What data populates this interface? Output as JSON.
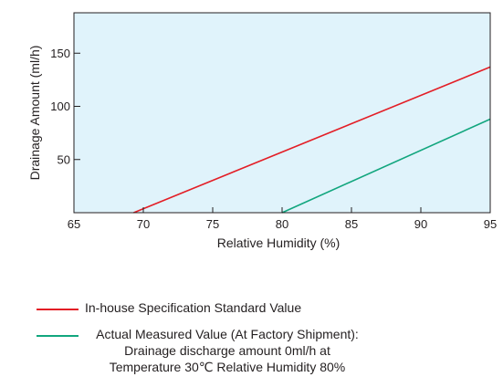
{
  "chart_data": {
    "type": "line",
    "title": "",
    "xlabel": "Relative Humidity (%)",
    "ylabel": "Drainage Amount (ml/h)",
    "xlim": [
      65,
      95
    ],
    "ylim": [
      0,
      188
    ],
    "xticks": [
      65,
      70,
      75,
      80,
      85,
      90,
      95
    ],
    "yticks": [
      50,
      100,
      150
    ],
    "grid": false,
    "background_color": "#e0f3fb",
    "series": [
      {
        "name": "In-house Specification Standard Value",
        "color": "#e31e26",
        "x": [
          69.3,
          95
        ],
        "y": [
          0,
          137
        ]
      },
      {
        "name": "Actual Measured Value (At Factory Shipment):",
        "color": "#12a67e",
        "x": [
          80,
          95
        ],
        "y": [
          0,
          88
        ]
      }
    ],
    "legend": {
      "placement": "bottom",
      "items": [
        {
          "color": "#e31e26",
          "lines": [
            "In-house Specification Standard Value"
          ]
        },
        {
          "color": "#12a67e",
          "lines": [
            "Actual Measured Value (At Factory Shipment):",
            "Drainage discharge amount 0ml/h at",
            "Temperature 30℃ Relative Humidity 80%"
          ]
        }
      ]
    }
  }
}
